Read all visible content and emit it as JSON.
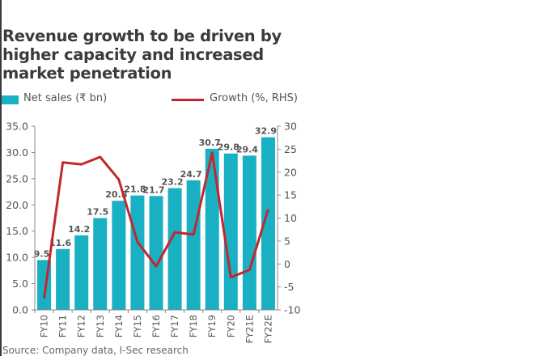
{
  "chart_data": {
    "type": "bar+line",
    "title": "Revenue growth to be driven by higher capacity and increased market penetration",
    "categories": [
      "FY10",
      "FY11",
      "FY12",
      "FY13",
      "FY14",
      "FY15",
      "FY16",
      "FY17",
      "FY18",
      "FY19",
      "FY20",
      "FY21E",
      "FY22E"
    ],
    "series": [
      {
        "name": "Net sales  (₹ bn)",
        "type": "bar",
        "axis": "left",
        "color": "#1ab0c4",
        "values": [
          9.5,
          11.6,
          14.2,
          17.5,
          20.8,
          21.8,
          21.7,
          23.2,
          24.7,
          30.7,
          29.8,
          29.4,
          32.9
        ],
        "labels": [
          "9.5",
          "11.6",
          "14.2",
          "17.5",
          "20.8",
          "21.8",
          "21.7",
          "23.2",
          "24.7",
          "30.7",
          "29.8",
          "29.4",
          "32.9"
        ]
      },
      {
        "name": "Growth (%, RHS)",
        "type": "line",
        "axis": "right",
        "color": "#c1272d",
        "values": [
          -7.5,
          22.1,
          21.7,
          23.3,
          18.4,
          4.8,
          -0.5,
          6.9,
          6.4,
          24.2,
          -2.9,
          -1.3,
          11.9
        ]
      }
    ],
    "left_axis": {
      "ylim": [
        0,
        35
      ],
      "ticks": [
        0,
        5,
        10,
        15,
        20,
        25,
        30,
        35
      ],
      "tick_labels": [
        "0.0",
        "5.0",
        "10.0",
        "15.0",
        "20.0",
        "25.0",
        "30.0",
        "35.0"
      ]
    },
    "right_axis": {
      "ylim": [
        -10,
        30
      ],
      "ticks": [
        -10,
        -5,
        0,
        5,
        10,
        15,
        20,
        25,
        30
      ],
      "tick_labels": [
        "-10",
        "-5",
        "0",
        "5",
        "10",
        "15",
        "20",
        "25",
        "30"
      ]
    },
    "xlabel": "",
    "ylabel": "",
    "grid": false,
    "legend_position": "top",
    "source": "Source: Company data, I-Sec research"
  }
}
